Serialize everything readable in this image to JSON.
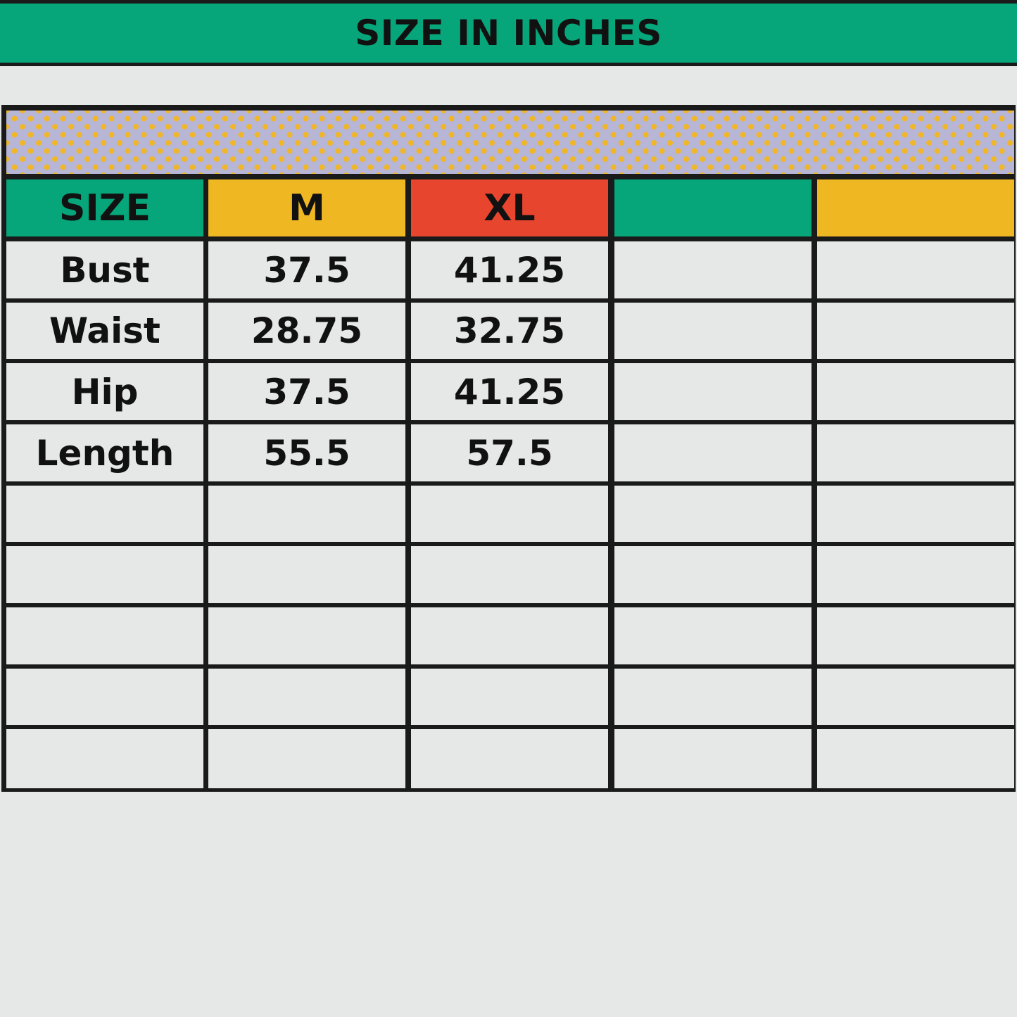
{
  "title": "SIZE IN INCHES",
  "colors": {
    "green": "#06a57a",
    "yellow": "#efb722",
    "red": "#e8452f",
    "pattern_bg": "#b7b6d6",
    "pattern_dot": "#f0b627",
    "border": "#1a1a1a"
  },
  "table": {
    "headers": [
      "SIZE",
      "M",
      "XL",
      "",
      ""
    ],
    "header_colors": [
      "#06a57a",
      "#efb722",
      "#e8452f",
      "#06a57a",
      "#efb722"
    ],
    "rows": [
      [
        "Bust",
        "37.5",
        "41.25",
        "",
        ""
      ],
      [
        "Waist",
        "28.75",
        "32.75",
        "",
        ""
      ],
      [
        "Hip",
        "37.5",
        "41.25",
        "",
        ""
      ],
      [
        "Length",
        "55.5",
        "57.5",
        "",
        ""
      ],
      [
        "",
        "",
        "",
        "",
        ""
      ],
      [
        "",
        "",
        "",
        "",
        ""
      ],
      [
        "",
        "",
        "",
        "",
        ""
      ],
      [
        "",
        "",
        "",
        "",
        ""
      ],
      [
        "",
        "",
        "",
        "",
        ""
      ]
    ]
  }
}
